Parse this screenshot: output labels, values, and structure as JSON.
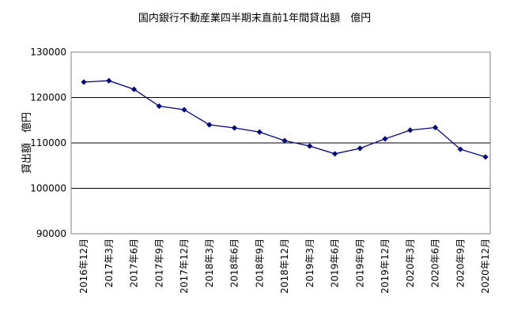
{
  "chart_data": {
    "type": "line",
    "title": "国内銀行不動産業四半期末直前1年間貸出額　億円",
    "ylabel": "貸出額　億円",
    "xlabel": "",
    "ylim": [
      90000,
      130000
    ],
    "yticks": [
      90000,
      100000,
      110000,
      120000,
      130000
    ],
    "ytick_labels": [
      "90000",
      "100000",
      "110000",
      "120000",
      "130000"
    ],
    "grid": "horizontal",
    "legend": "none",
    "categories": [
      "2016年12月",
      "2017年3月",
      "2017年6月",
      "2017年9月",
      "2017年12月",
      "2018年3月",
      "2018年6月",
      "2018年9月",
      "2018年12月",
      "2019年3月",
      "2019年6月",
      "2019年9月",
      "2019年12月",
      "2020年3月",
      "2020年6月",
      "2020年9月",
      "2020年12月"
    ],
    "values": [
      123400,
      123700,
      121800,
      118100,
      117300,
      114000,
      113300,
      112400,
      110500,
      109300,
      107600,
      108800,
      110900,
      112800,
      113400,
      108600,
      106900
    ],
    "colors": {
      "line": "#000080",
      "marker": "#000080",
      "grid": "#000000"
    }
  }
}
